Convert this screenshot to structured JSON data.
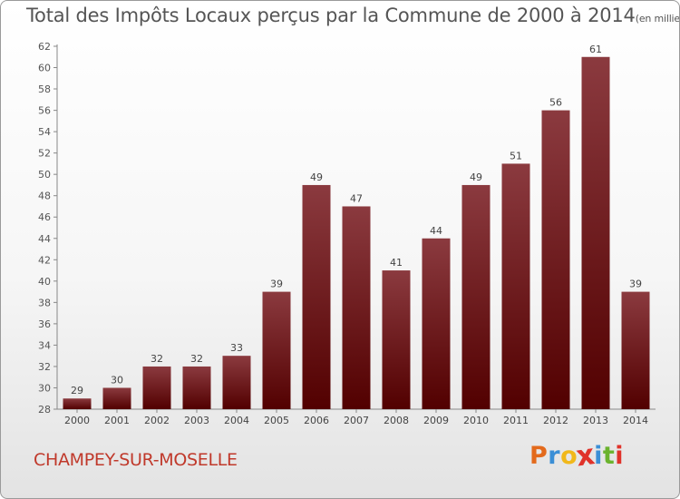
{
  "chart_data": {
    "type": "bar",
    "title": "Total des Impôts Locaux perçus par la Commune de 2000 à 2014",
    "unit_label": "(en milliers d'€)",
    "xlabel": "",
    "ylabel": "",
    "categories": [
      "2000",
      "2001",
      "2002",
      "2003",
      "2004",
      "2005",
      "2006",
      "2007",
      "2008",
      "2009",
      "2010",
      "2011",
      "2012",
      "2013",
      "2014"
    ],
    "values": [
      29,
      30,
      32,
      32,
      33,
      39,
      49,
      47,
      41,
      44,
      49,
      51,
      56,
      61,
      39
    ],
    "ylim": [
      28,
      62
    ],
    "yticks": [
      28,
      30,
      32,
      34,
      36,
      38,
      40,
      42,
      44,
      46,
      48,
      50,
      52,
      54,
      56,
      58,
      60,
      62
    ],
    "grid": false,
    "bar_color_top": "#8b3a3f",
    "bar_color_bottom": "#520000"
  },
  "commune": "CHAMPEY-SUR-MOSELLE",
  "logo": {
    "letters": [
      "P",
      "r",
      "o",
      "x",
      "i",
      "t",
      "i"
    ],
    "colors": [
      "#e36a1c",
      "#3b8fd6",
      "#f1b81a",
      "#e0322a",
      "#3b8fd6",
      "#6bb32e",
      "#e0322a"
    ]
  }
}
